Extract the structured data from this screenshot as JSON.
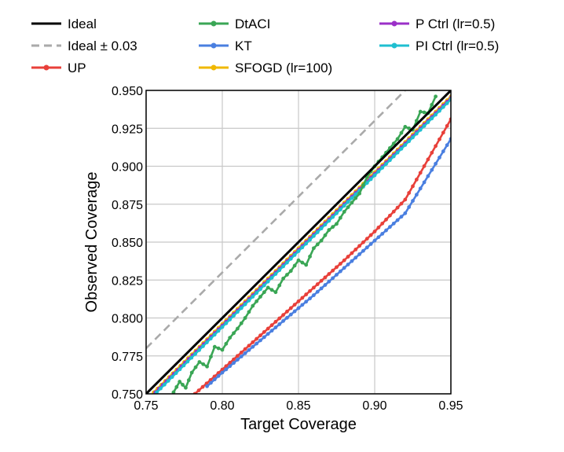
{
  "chart_data": {
    "type": "line",
    "title": "",
    "xlabel": "Target Coverage",
    "ylabel": "Observed Coverage",
    "xlim": [
      0.75,
      0.95
    ],
    "ylim": [
      0.75,
      0.95
    ],
    "grid": true,
    "x_ticks": [
      "0.75",
      "0.80",
      "0.85",
      "0.90",
      "0.95"
    ],
    "y_ticks": [
      "0.750",
      "0.775",
      "0.800",
      "0.825",
      "0.850",
      "0.875",
      "0.900",
      "0.925",
      "0.950"
    ],
    "legend_position": "top",
    "series": [
      {
        "name": "Ideal",
        "color": "#000000",
        "style": "solid",
        "markers": false,
        "x": [
          0.75,
          0.95
        ],
        "y": [
          0.75,
          0.95
        ]
      },
      {
        "name": "Ideal ± 0.03",
        "color": "#aaaaaa",
        "style": "dashed",
        "markers": false,
        "x": [
          0.75,
          0.92
        ],
        "y": [
          0.78,
          0.95
        ]
      },
      {
        "name": "UP",
        "color": "#e8403a",
        "style": "solid",
        "markers": true,
        "x": [
          0.782,
          0.8,
          0.82,
          0.84,
          0.86,
          0.88,
          0.9,
          0.92,
          0.95
        ],
        "y": [
          0.75,
          0.766,
          0.784,
          0.802,
          0.82,
          0.838,
          0.857,
          0.878,
          0.931
        ]
      },
      {
        "name": "DtACI",
        "color": "#3aa655",
        "style": "solid",
        "markers": true,
        "x": [
          0.768,
          0.772,
          0.776,
          0.78,
          0.785,
          0.79,
          0.795,
          0.8,
          0.805,
          0.81,
          0.815,
          0.82,
          0.825,
          0.83,
          0.835,
          0.84,
          0.845,
          0.85,
          0.855,
          0.86,
          0.865,
          0.87,
          0.875,
          0.88,
          0.885,
          0.89,
          0.895,
          0.9,
          0.905,
          0.91,
          0.915,
          0.92,
          0.925,
          0.93,
          0.935,
          0.94
        ],
        "y": [
          0.751,
          0.758,
          0.754,
          0.764,
          0.771,
          0.768,
          0.781,
          0.779,
          0.787,
          0.793,
          0.8,
          0.808,
          0.814,
          0.82,
          0.817,
          0.826,
          0.831,
          0.838,
          0.835,
          0.846,
          0.851,
          0.858,
          0.862,
          0.87,
          0.876,
          0.882,
          0.893,
          0.9,
          0.906,
          0.912,
          0.918,
          0.926,
          0.924,
          0.936,
          0.935,
          0.946
        ]
      },
      {
        "name": "KT",
        "color": "#4a7fe0",
        "style": "solid",
        "markers": true,
        "x": [
          0.79,
          0.8,
          0.82,
          0.84,
          0.86,
          0.88,
          0.9,
          0.92,
          0.95
        ],
        "y": [
          0.755,
          0.764,
          0.781,
          0.798,
          0.815,
          0.833,
          0.851,
          0.869,
          0.918
        ]
      },
      {
        "name": "SFOGD (lr=100)",
        "color": "#f0b800",
        "style": "solid",
        "markers": true,
        "x": [
          0.755,
          0.8,
          0.85,
          0.9,
          0.95
        ],
        "y": [
          0.751,
          0.796,
          0.846,
          0.896,
          0.946
        ]
      },
      {
        "name": "P Ctrl (lr=0.5)",
        "color": "#9b30c8",
        "style": "solid",
        "markers": true,
        "x": [
          0.756,
          0.8,
          0.85,
          0.9,
          0.95
        ],
        "y": [
          0.751,
          0.795,
          0.845,
          0.895,
          0.945
        ]
      },
      {
        "name": "PI Ctrl (lr=0.5)",
        "color": "#1fbfd0",
        "style": "solid",
        "markers": true,
        "x": [
          0.757,
          0.8,
          0.85,
          0.9,
          0.95
        ],
        "y": [
          0.751,
          0.794,
          0.844,
          0.894,
          0.944
        ]
      }
    ]
  }
}
